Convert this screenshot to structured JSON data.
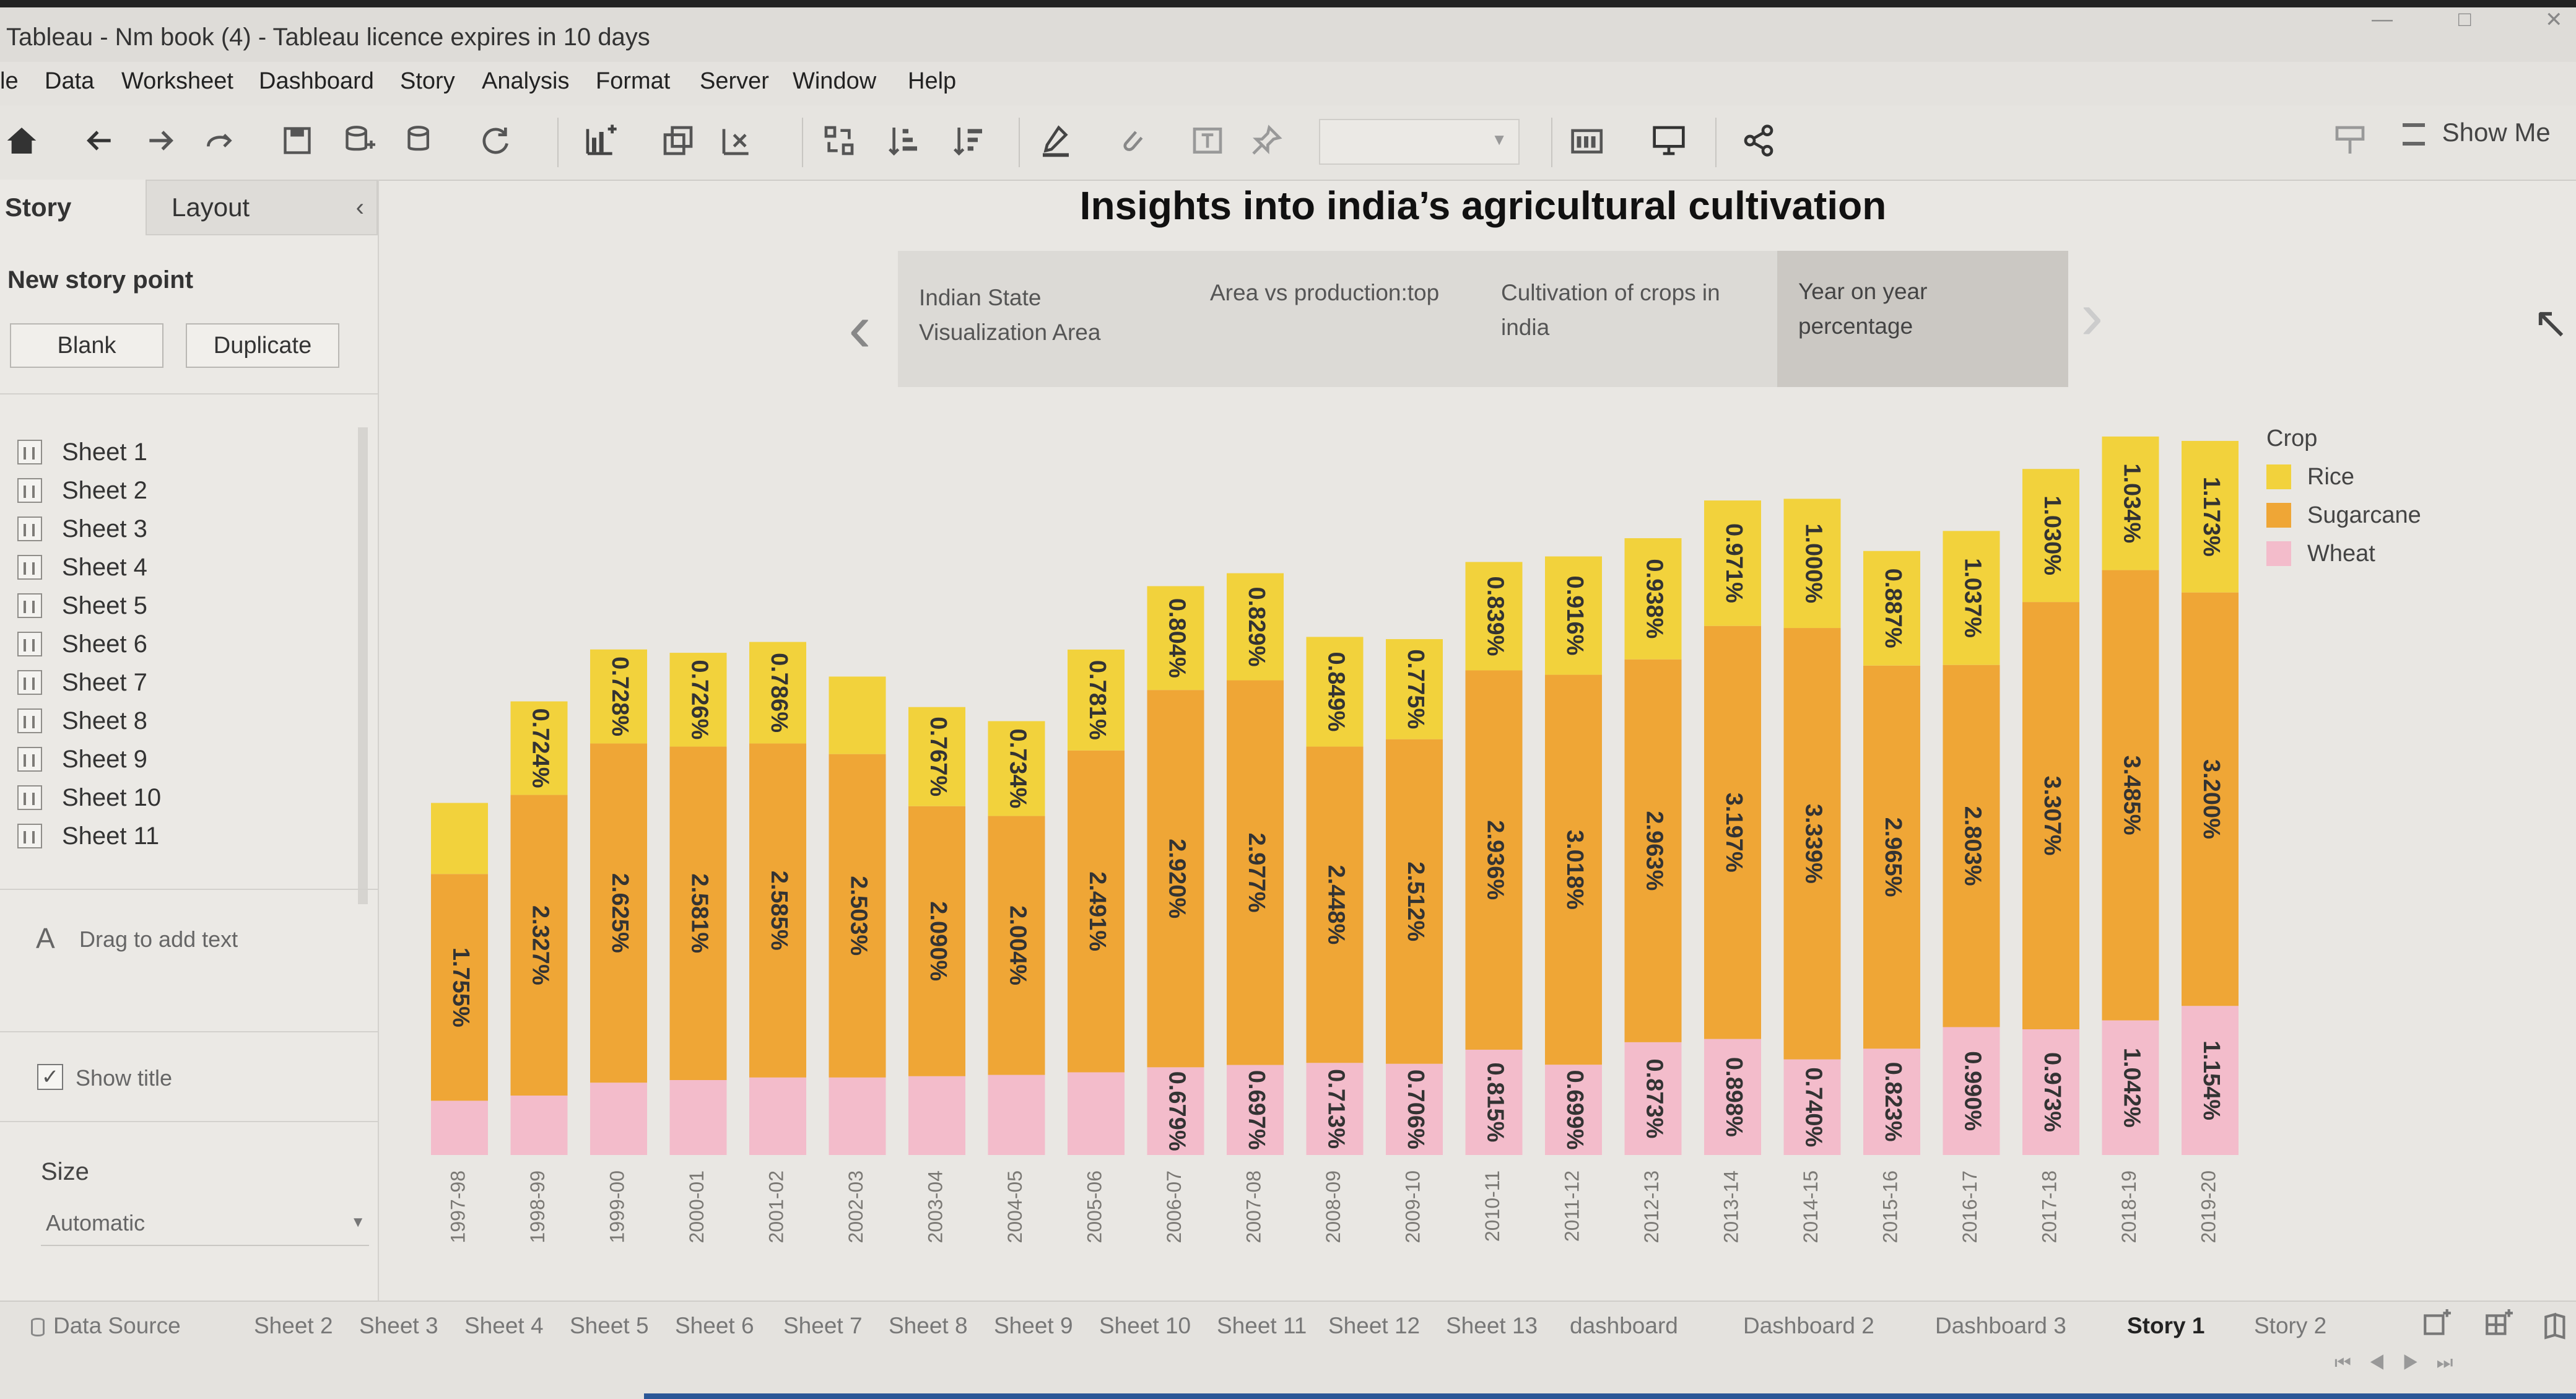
{
  "window": {
    "title": "Tableau - Nm book (4) - Tableau licence expires in 10 days"
  },
  "menu": [
    "le",
    "Data",
    "Worksheet",
    "Dashboard",
    "Story",
    "Analysis",
    "Format",
    "Server",
    "Window",
    "Help"
  ],
  "toolbar": {
    "show_me": "Show Me"
  },
  "left_panel": {
    "tab_story": "Story",
    "tab_layout": "Layout",
    "new_story_point": "New story point",
    "blank_btn": "Blank",
    "duplicate_btn": "Duplicate",
    "sheets": [
      "Sheet 1",
      "Sheet 2",
      "Sheet 3",
      "Sheet 4",
      "Sheet 5",
      "Sheet 6",
      "Sheet 7",
      "Sheet 8",
      "Sheet 9",
      "Sheet 10",
      "Sheet 11"
    ],
    "drag_text": "Drag to add text",
    "show_title": "Show title",
    "size_label": "Size",
    "size_value": "Automatic"
  },
  "story": {
    "title": "Insights into india’s agricultural cultivation",
    "points": [
      {
        "line1": "Indian State",
        "line2": "Visualization Area"
      },
      {
        "line1": "Area vs production:top",
        "line2": ""
      },
      {
        "line1": "Cultivation of crops in",
        "line2": "india"
      },
      {
        "line1": "Year on year",
        "line2": "percentage"
      }
    ]
  },
  "colors": {
    "rice": "#f2d23c",
    "sugarcane": "#efa636",
    "wheat": "#f3bccb"
  },
  "chart_data": {
    "type": "bar",
    "stacked": true,
    "orientation": "vertical",
    "legend_title": "Crop",
    "legend_position": "top-right",
    "categories": [
      "1997-98",
      "1998-99",
      "1999-00",
      "2000-01",
      "2001-02",
      "2002-03",
      "2003-04",
      "2004-05",
      "2005-06",
      "2006-07",
      "2007-08",
      "2008-09",
      "2009-10",
      "2010-11",
      "2011-12",
      "2012-13",
      "2013-14",
      "2014-15",
      "2015-16",
      "2016-17",
      "2017-18",
      "2018-19",
      "2019-20"
    ],
    "series": [
      {
        "name": "Wheat",
        "values": [
          0.42,
          0.46,
          0.56,
          0.58,
          0.6,
          0.6,
          0.61,
          0.62,
          0.64,
          0.679,
          0.697,
          0.713,
          0.706,
          0.815,
          0.699,
          0.873,
          0.898,
          0.74,
          0.823,
          0.99,
          0.973,
          1.042,
          1.154
        ],
        "labels": [
          "",
          "",
          "",
          "",
          "",
          "",
          "",
          "",
          "",
          "0.679%",
          "0.697%",
          "0.713%",
          "0.706%",
          "0.815%",
          "0.699%",
          "0.873%",
          "0.898%",
          "0.740%",
          "0.823%",
          "0.990%",
          "0.973%",
          "1.042%",
          "1.154%"
        ]
      },
      {
        "name": "Sugarcane",
        "values": [
          1.755,
          2.327,
          2.625,
          2.581,
          2.585,
          2.503,
          2.09,
          2.004,
          2.491,
          2.92,
          2.977,
          2.448,
          2.512,
          2.936,
          3.018,
          2.963,
          3.197,
          3.339,
          2.965,
          2.803,
          3.307,
          3.485,
          3.2
        ],
        "labels": [
          "1.755%",
          "2.327%",
          "2.625%",
          "2.581%",
          "2.585%",
          "2.503%",
          "2.090%",
          "2.004%",
          "2.491%",
          "2.920%",
          "2.977%",
          "2.448%",
          "2.512%",
          "2.936%",
          "3.018%",
          "2.963%",
          "3.197%",
          "3.339%",
          "2.965%",
          "2.803%",
          "3.307%",
          "3.485%",
          "3.200%"
        ]
      },
      {
        "name": "Rice",
        "values": [
          0.55,
          0.724,
          0.728,
          0.726,
          0.786,
          0.6,
          0.767,
          0.734,
          0.781,
          0.804,
          0.829,
          0.849,
          0.775,
          0.839,
          0.916,
          0.938,
          0.971,
          1.0,
          0.887,
          1.037,
          1.03,
          1.034,
          1.173
        ],
        "labels": [
          "",
          "0.724%",
          "0.728%",
          "0.726%",
          "0.786%",
          "",
          "0.767%",
          "0.734%",
          "0.781%",
          "0.804%",
          "0.829%",
          "0.849%",
          "0.775%",
          "0.839%",
          "0.916%",
          "0.938%",
          "0.971%",
          "1.000%",
          "0.887%",
          "1.037%",
          "1.030%",
          "1.034%",
          "1.173%"
        ]
      }
    ],
    "ylim": [
      0,
      5.8
    ],
    "xlabel": "",
    "ylabel": ""
  },
  "bottom_tabs": {
    "data_source": "Data Source",
    "tabs": [
      "Sheet 2",
      "Sheet 3",
      "Sheet 4",
      "Sheet 5",
      "Sheet 6",
      "Sheet 7",
      "Sheet 8",
      "Sheet 9",
      "Sheet 10",
      "Sheet 11",
      "Sheet 12",
      "Sheet 13",
      "dashboard",
      "Dashboard 2",
      "Dashboard 3",
      "Story 1",
      "Story 2"
    ],
    "active": "Story 1"
  }
}
